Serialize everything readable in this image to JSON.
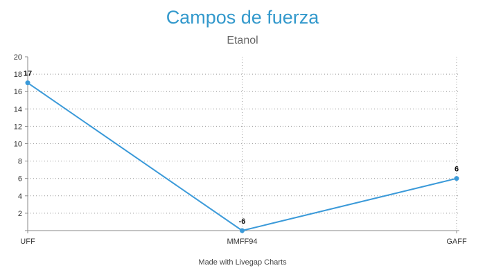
{
  "chart_data": {
    "type": "line",
    "title": "Campos de fuerza",
    "subtitle": "Etanol",
    "credit": "Made with Livegap Charts",
    "categories": [
      "UFF",
      "MMFF94",
      "GAFF"
    ],
    "series": [
      {
        "values": [
          17,
          -6,
          6
        ],
        "color": "#3b9ad9"
      }
    ],
    "ylim": [
      0,
      20
    ],
    "yticks": [
      2,
      4,
      6,
      8,
      10,
      12,
      14,
      16,
      18,
      20
    ],
    "grid": true,
    "legend": "none"
  }
}
